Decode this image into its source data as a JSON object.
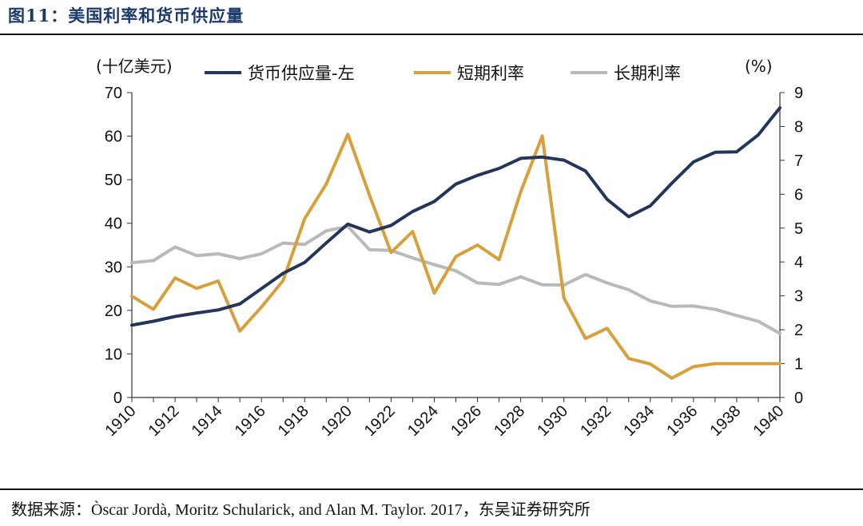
{
  "header": {
    "title": "图11：美国利率和货币供应量"
  },
  "footer": {
    "source": "数据来源：Òscar Jordà, Moritz Schularick, and Alan M. Taylor. 2017，东吴证券研究所"
  },
  "chart_data": {
    "type": "line",
    "left_axis_unit": "(十亿美元)",
    "right_axis_unit": "(%)",
    "left_ylim": [
      0,
      70
    ],
    "right_ylim": [
      0,
      9
    ],
    "left_ticks": [
      "0",
      "10",
      "20",
      "30",
      "40",
      "50",
      "60",
      "70"
    ],
    "right_ticks": [
      "0",
      "1",
      "2",
      "3",
      "4",
      "5",
      "6",
      "7",
      "8",
      "9"
    ],
    "x_tick_labels": [
      "1910",
      "1912",
      "1914",
      "1916",
      "1918",
      "1920",
      "1922",
      "1924",
      "1926",
      "1928",
      "1930",
      "1932",
      "1934",
      "1936",
      "1938",
      "1940"
    ],
    "x": [
      1910,
      1911,
      1912,
      1913,
      1914,
      1915,
      1916,
      1917,
      1918,
      1919,
      1920,
      1921,
      1922,
      1923,
      1924,
      1925,
      1926,
      1927,
      1928,
      1929,
      1930,
      1931,
      1932,
      1933,
      1934,
      1935,
      1936,
      1937,
      1938,
      1939,
      1940
    ],
    "series": [
      {
        "name": "货币供应量-左",
        "axis": "left",
        "color": "#24355a",
        "values": [
          16.6,
          17.5,
          18.6,
          19.4,
          20.1,
          21.5,
          25,
          28.5,
          31,
          35.5,
          39.8,
          38,
          39.5,
          42.7,
          45,
          49,
          51,
          52.6,
          54.9,
          55.2,
          54.5,
          52,
          45.5,
          41.5,
          44,
          49.2,
          54.1,
          56.3,
          56.4,
          60.3,
          66.5
        ]
      },
      {
        "name": "短期利率",
        "axis": "right",
        "color": "#d7a03b",
        "values": [
          2.99,
          2.6,
          3.53,
          3.22,
          3.44,
          1.96,
          2.67,
          3.45,
          5.28,
          6.3,
          7.77,
          5.97,
          4.28,
          4.9,
          3.08,
          4.16,
          4.5,
          4.07,
          6.07,
          7.72,
          2.94,
          1.74,
          2.04,
          1.15,
          0.99,
          0.57,
          0.91,
          1.0,
          1.0,
          1.0,
          1.0
        ]
      },
      {
        "name": "长期利率",
        "axis": "right",
        "color": "#b9b9b9",
        "values": [
          3.98,
          4.04,
          4.44,
          4.19,
          4.24,
          4.1,
          4.24,
          4.56,
          4.52,
          4.92,
          5.05,
          4.36,
          4.34,
          4.12,
          3.92,
          3.74,
          3.38,
          3.34,
          3.56,
          3.33,
          3.32,
          3.63,
          3.38,
          3.18,
          2.85,
          2.69,
          2.7,
          2.6,
          2.42,
          2.25,
          1.89
        ]
      }
    ]
  }
}
